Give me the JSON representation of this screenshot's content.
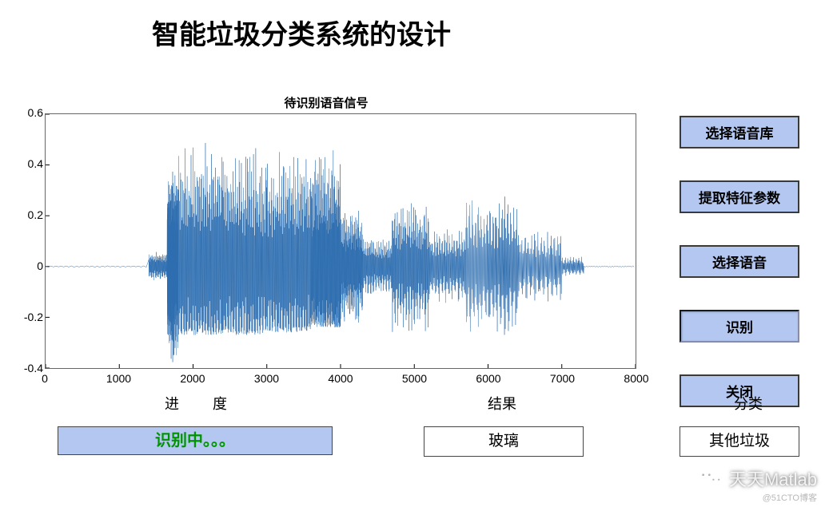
{
  "title": "智能垃圾分类系统的设计",
  "chart": {
    "title": "待识别语音信号",
    "type": "line",
    "line_color": "#2f6fb0",
    "background_color": "#ffffff",
    "border_color": "#666666",
    "line_width": 0.5,
    "xlim": [
      0,
      8000
    ],
    "ylim": [
      -0.4,
      0.6
    ],
    "xticks": [
      0,
      1000,
      2000,
      3000,
      4000,
      5000,
      6000,
      7000,
      8000
    ],
    "yticks": [
      -0.4,
      -0.2,
      0,
      0.2,
      0.4,
      0.6
    ],
    "tick_fontsize": 14,
    "title_fontsize": 15,
    "waveform": {
      "segments": [
        {
          "x_start": 0,
          "x_end": 1400,
          "amp": 0.003,
          "density": 20
        },
        {
          "x_start": 1400,
          "x_end": 1650,
          "amp": 0.06,
          "density": 40
        },
        {
          "x_start": 1650,
          "x_end": 1800,
          "amp": 0.38,
          "density": 70
        },
        {
          "x_start": 1800,
          "x_end": 2400,
          "amp": 0.5,
          "density": 80,
          "neg_cap": 0.27
        },
        {
          "x_start": 2400,
          "x_end": 3000,
          "amp": 0.47,
          "density": 80,
          "neg_cap": 0.27
        },
        {
          "x_start": 3000,
          "x_end": 3600,
          "amp": 0.46,
          "density": 80,
          "neg_cap": 0.26
        },
        {
          "x_start": 3600,
          "x_end": 4000,
          "amp": 0.46,
          "density": 80,
          "neg_cap": 0.24
        },
        {
          "x_start": 4000,
          "x_end": 4300,
          "amp": 0.23,
          "density": 60
        },
        {
          "x_start": 4300,
          "x_end": 4700,
          "amp": 0.12,
          "density": 55
        },
        {
          "x_start": 4700,
          "x_end": 5200,
          "amp": 0.27,
          "density": 65
        },
        {
          "x_start": 5200,
          "x_end": 5700,
          "amp": 0.15,
          "density": 55
        },
        {
          "x_start": 5700,
          "x_end": 6400,
          "amp": 0.28,
          "density": 65
        },
        {
          "x_start": 6400,
          "x_end": 7000,
          "amp": 0.14,
          "density": 50
        },
        {
          "x_start": 7000,
          "x_end": 7300,
          "amp": 0.04,
          "density": 30
        },
        {
          "x_start": 7300,
          "x_end": 8000,
          "amp": 0.003,
          "density": 20
        }
      ]
    }
  },
  "buttons": {
    "select_library": "选择语音库",
    "extract_features": "提取特征参数",
    "select_audio": "选择语音",
    "recognize": "识别",
    "close": "关闭"
  },
  "labels": {
    "progress": "进　　度",
    "result": "结果",
    "category": "分类"
  },
  "status": {
    "progress_text": "识别中。。。",
    "progress_color": "#009400",
    "progress_bg": "#b3c7f0",
    "result_text": "玻璃",
    "category_text": "其他垃圾"
  },
  "watermark": {
    "main": "天天Matlab",
    "sub": "@51CTO博客"
  }
}
